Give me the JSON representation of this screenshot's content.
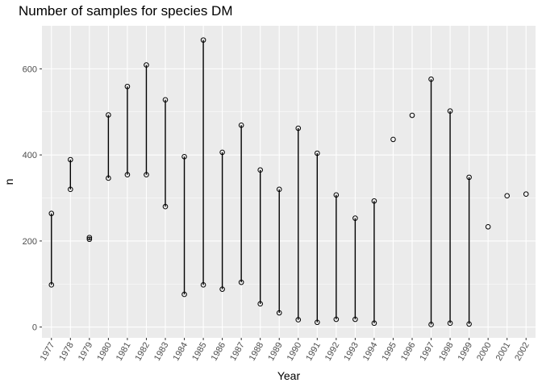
{
  "chart_data": {
    "type": "scatter",
    "title": "Number of samples for species DM",
    "xlabel": "Year",
    "ylabel": "n",
    "categories": [
      "1977",
      "1978",
      "1979",
      "1980",
      "1981",
      "1982",
      "1983",
      "1984",
      "1985",
      "1986",
      "1987",
      "1988",
      "1989",
      "1990",
      "1991",
      "1992",
      "1993",
      "1994",
      "1995",
      "1996",
      "1997",
      "1998",
      "1999",
      "2000",
      "2001",
      "2002"
    ],
    "ylim": [
      -25,
      700
    ],
    "yticks": [
      0,
      200,
      400,
      600
    ],
    "grid": true,
    "background": "#ebebeb",
    "gridColor": "#ffffff",
    "markColor": "#000000",
    "points": [
      {
        "year": "1977",
        "values": [
          98,
          264
        ]
      },
      {
        "year": "1978",
        "values": [
          320,
          389
        ]
      },
      {
        "year": "1979",
        "values": [
          204,
          208
        ]
      },
      {
        "year": "1980",
        "values": [
          346,
          493
        ]
      },
      {
        "year": "1981",
        "values": [
          354,
          559
        ]
      },
      {
        "year": "1982",
        "values": [
          354,
          609
        ]
      },
      {
        "year": "1983",
        "values": [
          280,
          528
        ]
      },
      {
        "year": "1984",
        "values": [
          76,
          396
        ]
      },
      {
        "year": "1985",
        "values": [
          98,
          667
        ]
      },
      {
        "year": "1986",
        "values": [
          88,
          406
        ]
      },
      {
        "year": "1987",
        "values": [
          104,
          469
        ]
      },
      {
        "year": "1988",
        "values": [
          54,
          365
        ]
      },
      {
        "year": "1989",
        "values": [
          33,
          320
        ]
      },
      {
        "year": "1990",
        "values": [
          17,
          462
        ]
      },
      {
        "year": "1991",
        "values": [
          11,
          404
        ]
      },
      {
        "year": "1992",
        "values": [
          18,
          307
        ]
      },
      {
        "year": "1993",
        "values": [
          18,
          253
        ]
      },
      {
        "year": "1994",
        "values": [
          9,
          293
        ]
      },
      {
        "year": "1995",
        "values": [
          436
        ]
      },
      {
        "year": "1996",
        "values": [
          492
        ]
      },
      {
        "year": "1997",
        "values": [
          6,
          576
        ]
      },
      {
        "year": "1998",
        "values": [
          9,
          502
        ]
      },
      {
        "year": "1999",
        "values": [
          7,
          348
        ]
      },
      {
        "year": "2000",
        "values": [
          233
        ]
      },
      {
        "year": "2001",
        "values": [
          305
        ]
      },
      {
        "year": "2002",
        "values": [
          309
        ]
      }
    ]
  }
}
